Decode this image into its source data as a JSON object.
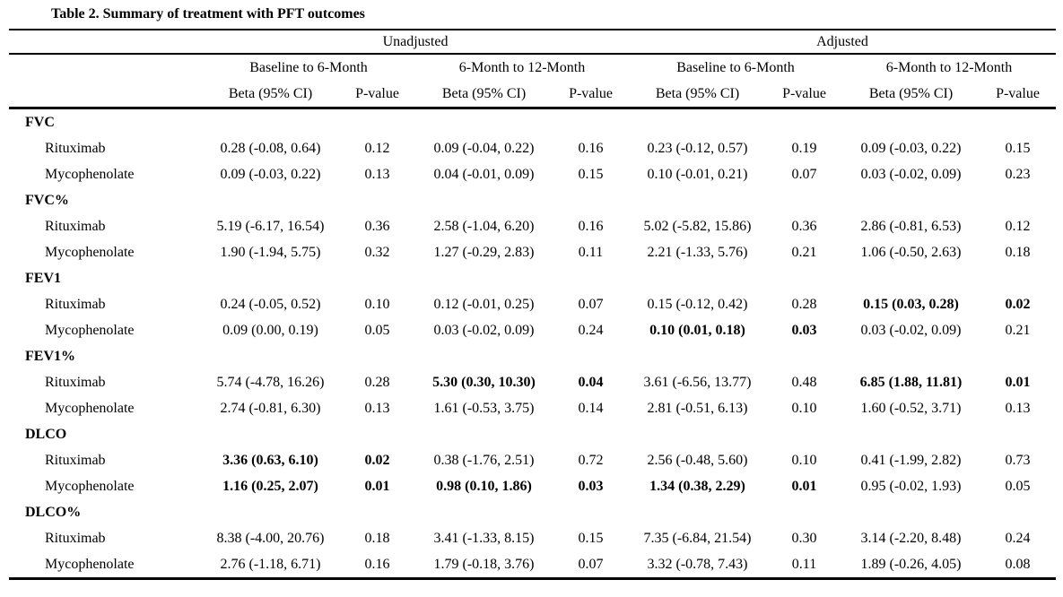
{
  "title": "Table 2. Summary of treatment with PFT outcomes",
  "table": {
    "group_headers": [
      "Unadjusted",
      "Adjusted"
    ],
    "period_headers": [
      "Baseline to 6-Month",
      "6-Month to 12-Month",
      "Baseline to 6-Month",
      "6-Month to 12-Month"
    ],
    "measure_headers": [
      "Beta (95% CI)",
      "P-value",
      "Beta (95% CI)",
      "P-value",
      "Beta (95% CI)",
      "P-value",
      "Beta (95% CI)",
      "P-value"
    ],
    "sections": [
      {
        "label": "FVC",
        "rows": [
          {
            "label": "Rituximab",
            "cells": [
              "0.28 (-0.08, 0.64)",
              "0.12",
              "0.09 (-0.04, 0.22)",
              "0.16",
              "0.23 (-0.12, 0.57)",
              "0.19",
              "0.09 (-0.03, 0.22)",
              "0.15"
            ],
            "bold": []
          },
          {
            "label": "Mycophenolate",
            "cells": [
              "0.09 (-0.03, 0.22)",
              "0.13",
              "0.04 (-0.01, 0.09)",
              "0.15",
              "0.10 (-0.01, 0.21)",
              "0.07",
              "0.03 (-0.02, 0.09)",
              "0.23"
            ],
            "bold": []
          }
        ]
      },
      {
        "label": "FVC%",
        "rows": [
          {
            "label": "Rituximab",
            "cells": [
              "5.19 (-6.17, 16.54)",
              "0.36",
              "2.58 (-1.04, 6.20)",
              "0.16",
              "5.02 (-5.82, 15.86)",
              "0.36",
              "2.86 (-0.81, 6.53)",
              "0.12"
            ],
            "bold": []
          },
          {
            "label": "Mycophenolate",
            "cells": [
              "1.90 (-1.94, 5.75)",
              "0.32",
              "1.27 (-0.29, 2.83)",
              "0.11",
              "2.21 (-1.33, 5.76)",
              "0.21",
              "1.06 (-0.50, 2.63)",
              "0.18"
            ],
            "bold": []
          }
        ]
      },
      {
        "label": "FEV1",
        "rows": [
          {
            "label": "Rituximab",
            "cells": [
              "0.24 (-0.05, 0.52)",
              "0.10",
              "0.12 (-0.01, 0.25)",
              "0.07",
              "0.15 (-0.12, 0.42)",
              "0.28",
              "0.15 (0.03, 0.28)",
              "0.02"
            ],
            "bold": [
              6,
              7
            ]
          },
          {
            "label": "Mycophenolate",
            "cells": [
              "0.09 (0.00, 0.19)",
              "0.05",
              "0.03 (-0.02, 0.09)",
              "0.24",
              "0.10 (0.01, 0.18)",
              "0.03",
              "0.03 (-0.02, 0.09)",
              "0.21"
            ],
            "bold": [
              4,
              5
            ]
          }
        ]
      },
      {
        "label": "FEV1%",
        "rows": [
          {
            "label": "Rituximab",
            "cells": [
              "5.74 (-4.78, 16.26)",
              "0.28",
              "5.30 (0.30, 10.30)",
              "0.04",
              "3.61 (-6.56, 13.77)",
              "0.48",
              "6.85 (1.88, 11.81)",
              "0.01"
            ],
            "bold": [
              2,
              3,
              6,
              7
            ]
          },
          {
            "label": "Mycophenolate",
            "cells": [
              "2.74 (-0.81, 6.30)",
              "0.13",
              "1.61 (-0.53, 3.75)",
              "0.14",
              "2.81 (-0.51, 6.13)",
              "0.10",
              "1.60 (-0.52, 3.71)",
              "0.13"
            ],
            "bold": []
          }
        ]
      },
      {
        "label": "DLCO",
        "rows": [
          {
            "label": "Rituximab",
            "cells": [
              "3.36 (0.63, 6.10)",
              "0.02",
              "0.38 (-1.76, 2.51)",
              "0.72",
              "2.56 (-0.48, 5.60)",
              "0.10",
              "0.41 (-1.99, 2.82)",
              "0.73"
            ],
            "bold": [
              0,
              1
            ]
          },
          {
            "label": "Mycophenolate",
            "cells": [
              "1.16 (0.25, 2.07)",
              "0.01",
              "0.98 (0.10, 1.86)",
              "0.03",
              "1.34 (0.38, 2.29)",
              "0.01",
              "0.95 (-0.02, 1.93)",
              "0.05"
            ],
            "bold": [
              0,
              1,
              2,
              3,
              4,
              5
            ]
          }
        ]
      },
      {
        "label": "DLCO%",
        "rows": [
          {
            "label": "Rituximab",
            "cells": [
              "8.38 (-4.00, 20.76)",
              "0.18",
              "3.41 (-1.33, 8.15)",
              "0.15",
              "7.35 (-6.84, 21.54)",
              "0.30",
              "3.14 (-2.20, 8.48)",
              "0.24"
            ],
            "bold": []
          },
          {
            "label": "Mycophenolate",
            "cells": [
              "2.76 (-1.18, 6.71)",
              "0.16",
              "1.79 (-0.18, 3.76)",
              "0.07",
              "3.32 (-0.78, 7.43)",
              "0.11",
              "1.89 (-0.26, 4.05)",
              "0.08"
            ],
            "bold": []
          }
        ]
      }
    ]
  }
}
